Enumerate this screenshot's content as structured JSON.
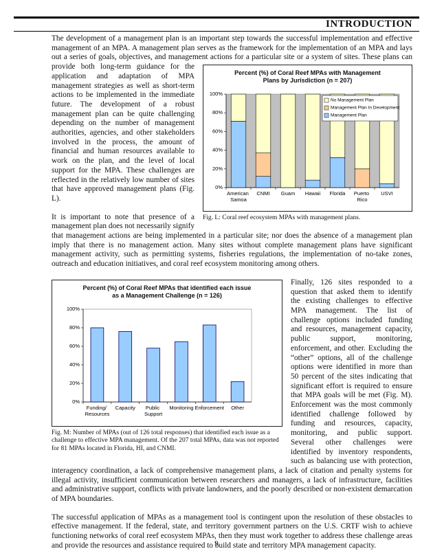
{
  "header": {
    "title": "INTRODUCTION"
  },
  "paragraphs": [
    "The development of a management plan is an important step towards the successful implementation and effective management of an MPA.  A management plan serves as the framework for the implementation of an MPA and lays out a series of goals, objectives, and management actions for a particular site or a system of sites.  These plans can provide both long-term guidance for the application and adaptation of MPA management strategies as well as short-term actions to be implemented in the immediate future.  The development of a robust management plan can be quite challenging depending on the number of management authorities, agencies, and other stakeholders involved in the process, the amount of financial and human resources available to work on the plan, and the level of local support for the MPA.  These challenges are reflected in the relatively low number of sites that have approved management plans (Fig. L).",
    "It is important to note that presence of a management plan does not necessarily signify that management actions are being implemented in a particular site; nor does the absence of a management plan imply that there is no management action.  Many sites without complete management plans have significant management activity, such as permitting systems, fisheries regulations, the implementation of no-take zones, outreach and education initiatives, and coral reef ecosystem monitoring among others.",
    "Finally, 126 sites responded to a question that asked them to identify the existing challenges to effective MPA management.  The list of challenge options included funding and resources, management capacity, public support, monitoring, enforcement, and other.  Excluding the “other” options, all of the challenge options were identified in more than 50 percent of the sites indicating that significant effort is required to ensure that MPA goals will be met (Fig. M).  Enforcement was the most commonly identified challenge followed by funding and resources, capacity, monitoring, and public support.  Several other challenges were identified by inventory respondents, such as balancing use with protection, interagency coordination, a lack of comprehensive management plans, a lack of citation and penalty systems for illegal activity, insufficient communication between researchers and managers, a lack of infrastructure, facilities and administrative support, conflicts with private landowners, and the poorly described or non-existent demarcation of MPA boundaries.",
    "The successful application of MPAs as a management tool is contingent upon the resolution of these obstacles to effective management.  If the federal, state, and territory government partners on the U.S. CRTF wish to achieve functioning networks of coral reef ecosystem MPAs, then they must work together to address these challenge areas and provide the resources and assistance required to build state and territory MPA management capacity."
  ],
  "captions": [
    "Fig. L: Coral reef ecosystem MPAs with management plans.",
    "Fig. M: Number of MPAs (out of 126 total responses) that identified each issue as a challenge to effective MPA management.  Of the 207 total MPAs, data was not reported for 81 MPAs located in Florida, HI, and CNMI."
  ],
  "page_number": "9",
  "chart_data": [
    {
      "type": "bar",
      "stacked": true,
      "title": "Percent (%) of Coral Reef MPAs with Management Plans by Jurisdiction (n = 207)",
      "categories": [
        "American Samoa",
        "CNMI",
        "Guam",
        "Hawaii",
        "Florida",
        "Puerto Rico",
        "USVI"
      ],
      "series": [
        {
          "name": "Management Plan",
          "color": "#99ccff",
          "values": [
            71,
            12,
            0,
            8,
            32,
            0,
            4
          ]
        },
        {
          "name": "Management Plan In Development",
          "color": "#ffcc99",
          "values": [
            0,
            25,
            0,
            0,
            0,
            20,
            0
          ]
        },
        {
          "name": "No Management Plan",
          "color": "#ffffcc",
          "values": [
            29,
            63,
            100,
            92,
            68,
            80,
            96
          ]
        }
      ],
      "ylim": [
        0,
        100
      ],
      "yticks": [
        {
          "value": 0,
          "label": "0%"
        },
        {
          "value": 20,
          "label": "20%"
        },
        {
          "value": 40,
          "label": "40%"
        },
        {
          "value": 60,
          "label": "60%"
        },
        {
          "value": 80,
          "label": "80%"
        },
        {
          "value": 100,
          "label": "100%"
        }
      ],
      "plot_background": "#c0c0c0",
      "legend": "upper right"
    },
    {
      "type": "bar",
      "title": "Percent (%) of Coral Reef MPAs that identified each issue as a Management Challenge (n = 126)",
      "categories": [
        "Funding/ Resources",
        "Capacity",
        "Public Support",
        "Monitoring",
        "Enforcement",
        "Other"
      ],
      "values": [
        80,
        76,
        58,
        65,
        83,
        22
      ],
      "color": "#99ccff",
      "ylim": [
        0,
        100
      ],
      "yticks": [
        {
          "value": 0,
          "label": "0%"
        },
        {
          "value": 20,
          "label": "20%"
        },
        {
          "value": 40,
          "label": "40%"
        },
        {
          "value": 60,
          "label": "60%"
        },
        {
          "value": 80,
          "label": "80%"
        },
        {
          "value": 100,
          "label": "100%"
        }
      ],
      "plot_background": "#ffffff"
    }
  ]
}
